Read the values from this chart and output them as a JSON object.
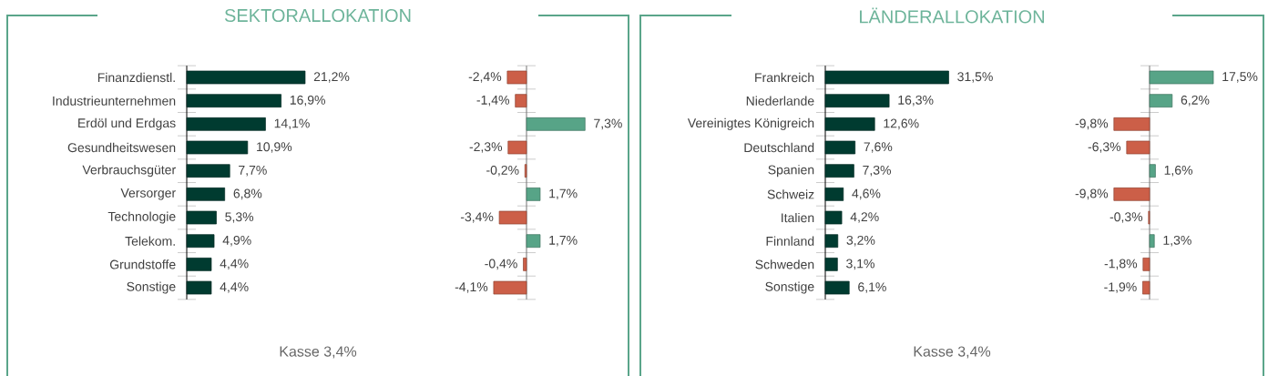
{
  "chart_data": [
    {
      "type": "bar",
      "orientation": "horizontal",
      "title": "SEKTORALLOKATION",
      "categories": [
        "Finanzdienstl.",
        "Industrieunternehmen",
        "Erdöl und Erdgas",
        "Gesundheitswesen",
        "Verbrauchsgüter",
        "Versorger",
        "Technologie",
        "Telekom.",
        "Grundstoffe",
        "Sonstige"
      ],
      "values": [
        21.2,
        16.9,
        14.1,
        10.9,
        7.7,
        6.8,
        5.3,
        4.9,
        4.4,
        4.4
      ],
      "value_labels": [
        "21,2%",
        "16,9%",
        "14,1%",
        "10,9%",
        "7,7%",
        "6,8%",
        "5,3%",
        "4,9%",
        "4,4%",
        "4,4%"
      ],
      "color": "#003b30",
      "annotations": [
        "Kasse 3,4%"
      ]
    },
    {
      "type": "bar",
      "orientation": "horizontal",
      "categories": [
        null,
        null,
        null,
        null,
        null,
        null,
        null,
        null,
        null,
        null
      ],
      "values": [
        -2.4,
        -1.4,
        7.3,
        -2.3,
        -0.2,
        1.7,
        -3.4,
        1.7,
        -0.4,
        -4.1
      ],
      "value_labels": [
        "-2,4%",
        "-1,4%",
        "7,3%",
        "-2,3%",
        "-0,2%",
        "1,7%",
        "-3,4%",
        "1,7%",
        "-0,4%",
        "-4,1%"
      ],
      "colors": [
        "#cc5f48",
        "#cc5f48",
        "#57a487",
        "#cc5f48",
        "#cc5f48",
        "#57a487",
        "#cc5f48",
        "#57a487",
        "#cc5f48",
        "#cc5f48"
      ]
    },
    {
      "type": "bar",
      "orientation": "horizontal",
      "title": "LÄNDERALLOKATION",
      "categories": [
        "Frankreich",
        "Niederlande",
        "Vereinigtes Königreich",
        "Deutschland",
        "Spanien",
        "Schweiz",
        "Italien",
        "Finnland",
        "Schweden",
        "Sonstige"
      ],
      "values": [
        31.5,
        16.3,
        12.6,
        7.6,
        7.3,
        4.6,
        4.2,
        3.2,
        3.1,
        6.1
      ],
      "value_labels": [
        "31,5%",
        "16,3%",
        "12,6%",
        "7,6%",
        "7,3%",
        "4,6%",
        "4,2%",
        "3,2%",
        "3,1%",
        "6,1%"
      ],
      "color": "#003b30",
      "annotations": [
        "Kasse 3,4%"
      ]
    },
    {
      "type": "bar",
      "orientation": "horizontal",
      "categories": [
        null,
        null,
        null,
        null,
        null,
        null,
        null,
        null,
        null,
        null
      ],
      "values": [
        17.5,
        6.2,
        -9.8,
        -6.3,
        1.6,
        -9.8,
        -0.3,
        1.3,
        -1.8,
        -1.9
      ],
      "value_labels": [
        "17,5%",
        "6,2%",
        "-9,8%",
        "-6,3%",
        "1,6%",
        "-9,8%",
        "-0,3%",
        "1,3%",
        "-1,8%",
        "-1,9%"
      ],
      "colors": [
        "#57a487",
        "#57a487",
        "#cc5f48",
        "#cc5f48",
        "#57a487",
        "#cc5f48",
        "#cc5f48",
        "#57a487",
        "#cc5f48",
        "#cc5f48"
      ]
    }
  ]
}
